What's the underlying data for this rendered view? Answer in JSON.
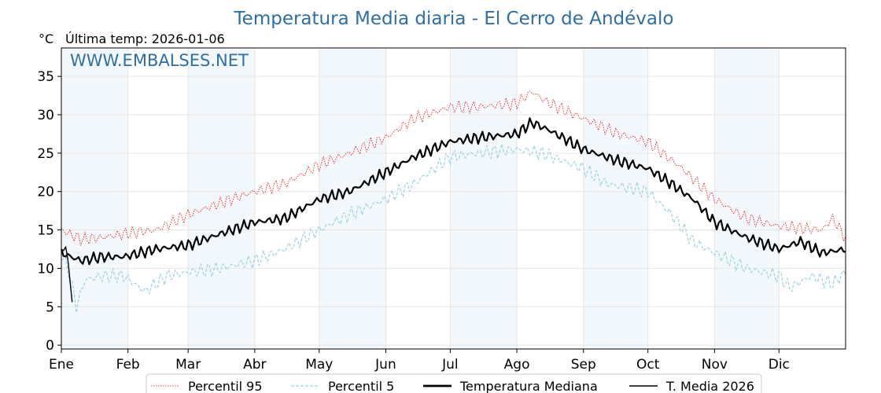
{
  "chart_data": {
    "type": "line",
    "title": "Temperatura Media diaria - El Cerro de Andévalo",
    "unit_label": "°C",
    "subtitle": "Última temp: 2026-01-06",
    "watermark": "WWW.EMBALSES.NET",
    "xlabel": "",
    "ylabel": "",
    "x_range": [
      1,
      366
    ],
    "ylim": [
      -0.5,
      38.7
    ],
    "yticks": [
      0,
      5,
      10,
      15,
      20,
      25,
      30,
      35
    ],
    "month_ticks": [
      {
        "label": "Ene",
        "day": 1
      },
      {
        "label": "Feb",
        "day": 32
      },
      {
        "label": "Mar",
        "day": 60
      },
      {
        "label": "Abr",
        "day": 91
      },
      {
        "label": "May",
        "day": 121
      },
      {
        "label": "Jun",
        "day": 152
      },
      {
        "label": "Jul",
        "day": 182
      },
      {
        "label": "Ago",
        "day": 213
      },
      {
        "label": "Sep",
        "day": 244
      },
      {
        "label": "Oct",
        "day": 274
      },
      {
        "label": "Nov",
        "day": 305
      },
      {
        "label": "Dic",
        "day": 335
      }
    ],
    "shaded_month_bands": [
      [
        1,
        32
      ],
      [
        60,
        91
      ],
      [
        121,
        152
      ],
      [
        182,
        213
      ],
      [
        244,
        274
      ],
      [
        305,
        335
      ]
    ],
    "grid": true,
    "legend_position": "bottom-center",
    "colors": {
      "p95": "#ff0000",
      "p5": "#9fd2e0",
      "median": "#000000",
      "current": "#000000",
      "title": "#2e6fa3",
      "band": "#f3f8fc"
    },
    "series": [
      {
        "name": "Percentil 95",
        "style": "dotted",
        "keypoints": [
          [
            1,
            15
          ],
          [
            10,
            13.8
          ],
          [
            20,
            14
          ],
          [
            30,
            14.5
          ],
          [
            45,
            15
          ],
          [
            60,
            17
          ],
          [
            75,
            18.5
          ],
          [
            91,
            20
          ],
          [
            105,
            21
          ],
          [
            121,
            23.5
          ],
          [
            135,
            25
          ],
          [
            152,
            27
          ],
          [
            165,
            29.5
          ],
          [
            182,
            31
          ],
          [
            195,
            31
          ],
          [
            213,
            31.5
          ],
          [
            220,
            33
          ],
          [
            228,
            31.5
          ],
          [
            244,
            29.5
          ],
          [
            260,
            27.5
          ],
          [
            274,
            26.5
          ],
          [
            290,
            23
          ],
          [
            305,
            19
          ],
          [
            320,
            16.5
          ],
          [
            335,
            15.5
          ],
          [
            355,
            15
          ],
          [
            360,
            16.5
          ],
          [
            366,
            14
          ]
        ]
      },
      {
        "name": "Percentil 5",
        "style": "dashed",
        "keypoints": [
          [
            1,
            12
          ],
          [
            5,
            9
          ],
          [
            8,
            5
          ],
          [
            12,
            8.5
          ],
          [
            20,
            9
          ],
          [
            30,
            9
          ],
          [
            40,
            7
          ],
          [
            50,
            9
          ],
          [
            60,
            9.5
          ],
          [
            75,
            10
          ],
          [
            91,
            11
          ],
          [
            105,
            12.5
          ],
          [
            121,
            15
          ],
          [
            135,
            17
          ],
          [
            152,
            19
          ],
          [
            165,
            21
          ],
          [
            182,
            24.5
          ],
          [
            195,
            25
          ],
          [
            213,
            25.5
          ],
          [
            225,
            25
          ],
          [
            244,
            23
          ],
          [
            255,
            21
          ],
          [
            274,
            20
          ],
          [
            285,
            17
          ],
          [
            295,
            13.5
          ],
          [
            305,
            12
          ],
          [
            320,
            10
          ],
          [
            335,
            9
          ],
          [
            340,
            7.5
          ],
          [
            350,
            9
          ],
          [
            360,
            8
          ],
          [
            366,
            9.5
          ]
        ]
      },
      {
        "name": "Temperatura Mediana",
        "style": "solid-thick",
        "keypoints": [
          [
            1,
            12
          ],
          [
            10,
            11
          ],
          [
            20,
            11.5
          ],
          [
            30,
            11.5
          ],
          [
            45,
            12.5
          ],
          [
            60,
            13
          ],
          [
            75,
            14.5
          ],
          [
            91,
            16
          ],
          [
            105,
            16.5
          ],
          [
            121,
            19
          ],
          [
            135,
            20
          ],
          [
            152,
            22.5
          ],
          [
            165,
            24.5
          ],
          [
            182,
            26.5
          ],
          [
            195,
            27
          ],
          [
            213,
            27.5
          ],
          [
            220,
            29
          ],
          [
            228,
            28
          ],
          [
            244,
            25.5
          ],
          [
            260,
            24
          ],
          [
            274,
            23
          ],
          [
            285,
            21
          ],
          [
            295,
            19
          ],
          [
            305,
            16
          ],
          [
            320,
            14
          ],
          [
            335,
            12.5
          ],
          [
            345,
            13.5
          ],
          [
            355,
            12
          ],
          [
            366,
            12.5
          ]
        ]
      },
      {
        "name": "T. Media 2026",
        "style": "solid-thin",
        "points": [
          [
            1,
            12.5
          ],
          [
            2,
            12.3
          ],
          [
            3,
            12.8
          ],
          [
            4,
            11.2
          ],
          [
            5,
            8.5
          ],
          [
            6,
            5.6
          ]
        ]
      }
    ]
  }
}
